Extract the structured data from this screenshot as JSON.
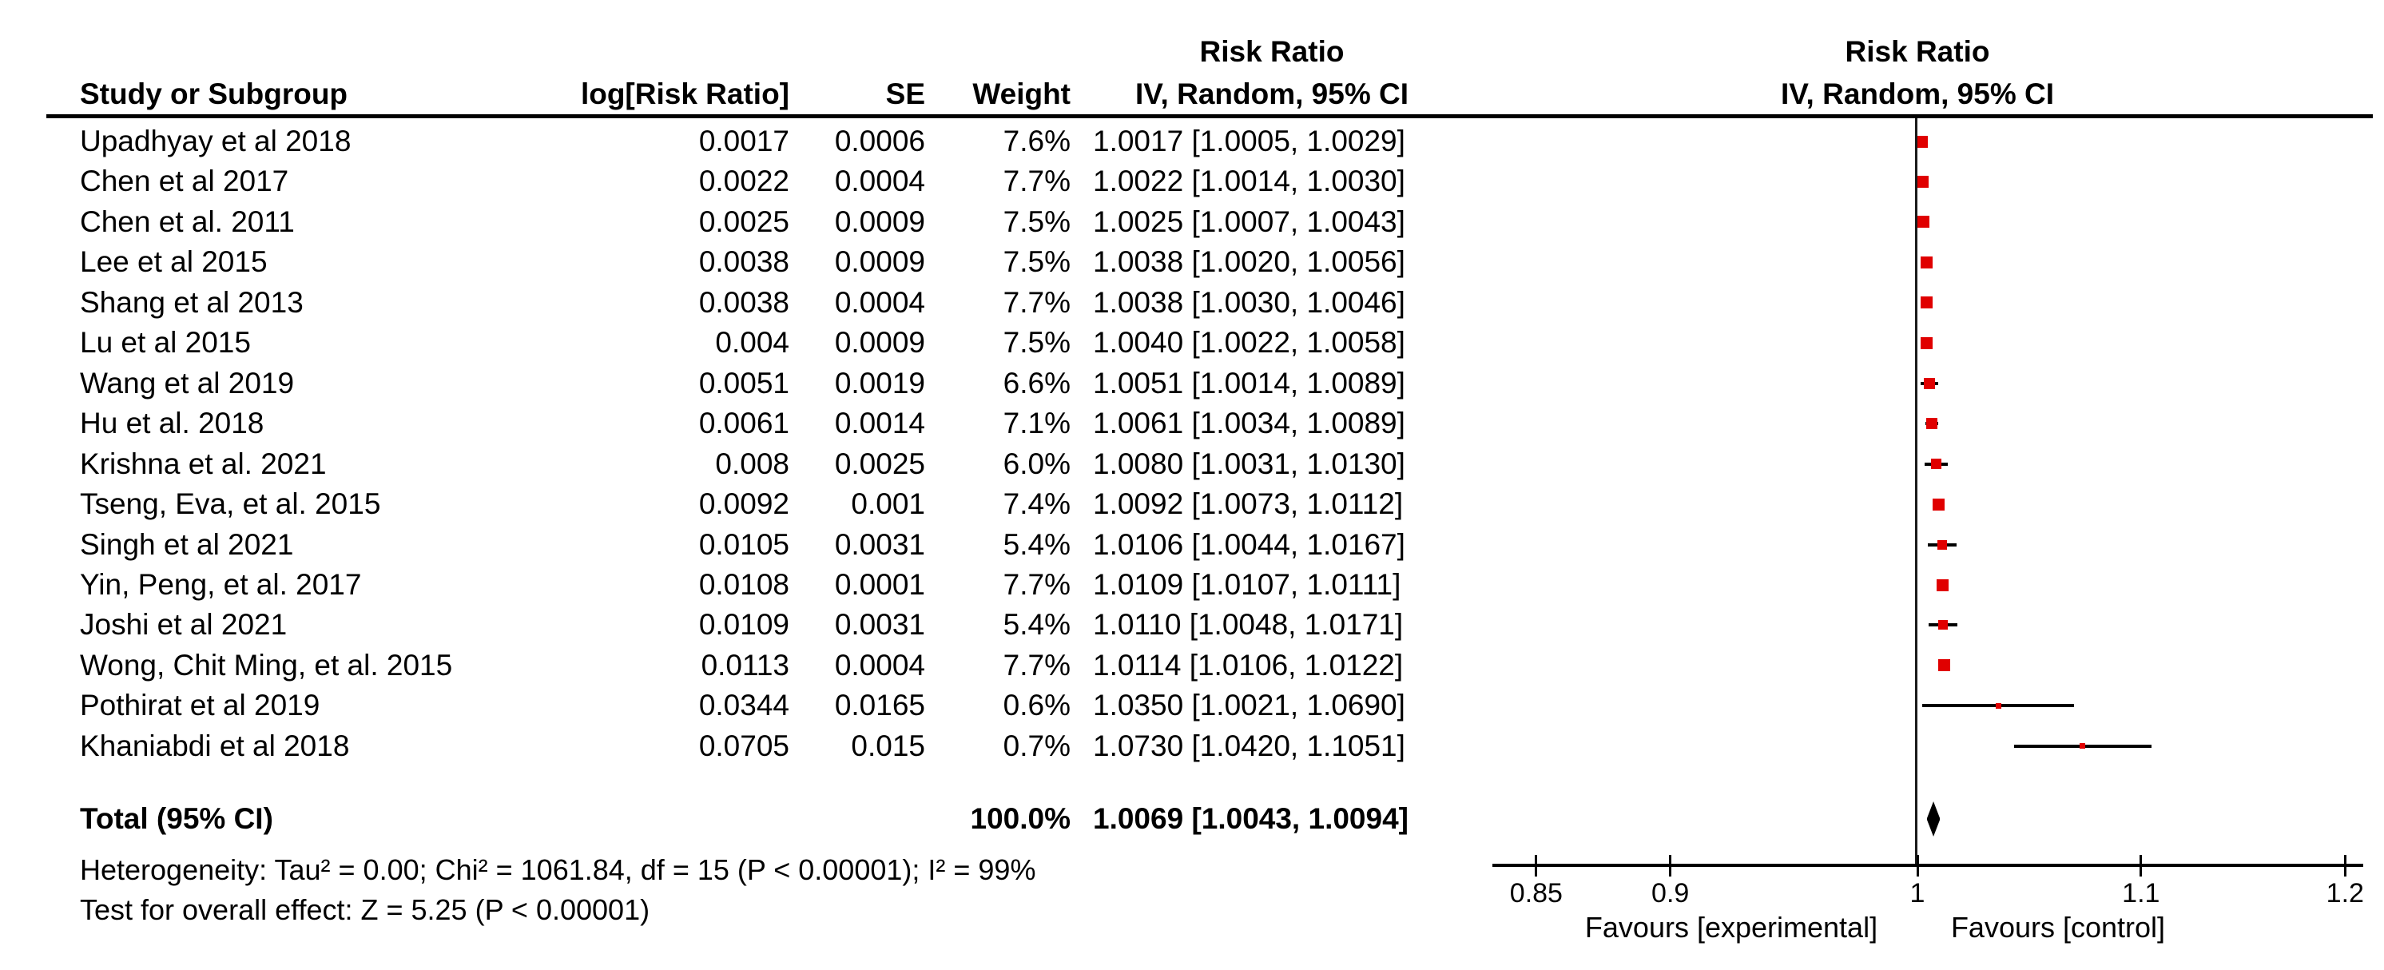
{
  "header": {
    "effect_title_left": "Risk Ratio",
    "effect_title_right": "Risk Ratio",
    "columns": {
      "study": "Study or Subgroup",
      "log_rr": "log[Risk Ratio]",
      "se": "SE",
      "weight": "Weight",
      "ci_left": "IV, Random, 95% CI",
      "ci_right": "IV, Random, 95% CI"
    }
  },
  "footer": {
    "heterogeneity": "Heterogeneity: Tau² = 0.00; Chi² = 1061.84, df = 15 (P < 0.00001); I² = 99%",
    "overall_effect": "Test for overall effect: Z = 5.25 (P < 0.00001)"
  },
  "colors": {
    "marker_red": "#e00000",
    "line_black": "#000000"
  },
  "chart_data": {
    "type": "forest",
    "effect_measure": "Risk Ratio",
    "model": "IV, Random, 95% CI",
    "x_scale": "log",
    "x_ticks": [
      0.85,
      0.9,
      1,
      1.1,
      1.2
    ],
    "x_tick_labels": [
      "0.85",
      "0.9",
      "1",
      "1.1",
      "1.2"
    ],
    "favours_left": "Favours [experimental]",
    "favours_right": "Favours [control]",
    "studies": [
      {
        "name": "Upadhyay et al 2018",
        "log_rr": "0.0017",
        "se": "0.0006",
        "weight": "7.6%",
        "ci_text": "1.0017 [1.0005, 1.0029]",
        "rr": 1.0017,
        "lo": 1.0005,
        "hi": 1.0029,
        "w": 7.6
      },
      {
        "name": "Chen et al 2017",
        "log_rr": "0.0022",
        "se": "0.0004",
        "weight": "7.7%",
        "ci_text": "1.0022 [1.0014, 1.0030]",
        "rr": 1.0022,
        "lo": 1.0014,
        "hi": 1.003,
        "w": 7.7
      },
      {
        "name": "Chen et al. 2011",
        "log_rr": "0.0025",
        "se": "0.0009",
        "weight": "7.5%",
        "ci_text": "1.0025 [1.0007, 1.0043]",
        "rr": 1.0025,
        "lo": 1.0007,
        "hi": 1.0043,
        "w": 7.5
      },
      {
        "name": "Lee et al 2015",
        "log_rr": "0.0038",
        "se": "0.0009",
        "weight": "7.5%",
        "ci_text": "1.0038 [1.0020, 1.0056]",
        "rr": 1.0038,
        "lo": 1.002,
        "hi": 1.0056,
        "w": 7.5
      },
      {
        "name": "Shang et al 2013",
        "log_rr": "0.0038",
        "se": "0.0004",
        "weight": "7.7%",
        "ci_text": "1.0038 [1.0030, 1.0046]",
        "rr": 1.0038,
        "lo": 1.003,
        "hi": 1.0046,
        "w": 7.7
      },
      {
        "name": "Lu et al 2015",
        "log_rr": "0.004",
        "se": "0.0009",
        "weight": "7.5%",
        "ci_text": "1.0040 [1.0022, 1.0058]",
        "rr": 1.004,
        "lo": 1.0022,
        "hi": 1.0058,
        "w": 7.5
      },
      {
        "name": "Wang et al 2019",
        "log_rr": "0.0051",
        "se": "0.0019",
        "weight": "6.6%",
        "ci_text": "1.0051 [1.0014, 1.0089]",
        "rr": 1.0051,
        "lo": 1.0014,
        "hi": 1.0089,
        "w": 6.6
      },
      {
        "name": "Hu et al. 2018",
        "log_rr": "0.0061",
        "se": "0.0014",
        "weight": "7.1%",
        "ci_text": "1.0061 [1.0034, 1.0089]",
        "rr": 1.0061,
        "lo": 1.0034,
        "hi": 1.0089,
        "w": 7.1
      },
      {
        "name": "Krishna et al. 2021",
        "log_rr": "0.008",
        "se": "0.0025",
        "weight": "6.0%",
        "ci_text": "1.0080 [1.0031, 1.0130]",
        "rr": 1.008,
        "lo": 1.0031,
        "hi": 1.013,
        "w": 6.0
      },
      {
        "name": "Tseng, Eva, et al. 2015",
        "log_rr": "0.0092",
        "se": "0.001",
        "weight": "7.4%",
        "ci_text": "1.0092 [1.0073, 1.0112]",
        "rr": 1.0092,
        "lo": 1.0073,
        "hi": 1.0112,
        "w": 7.4
      },
      {
        "name": "Singh et al 2021",
        "log_rr": "0.0105",
        "se": "0.0031",
        "weight": "5.4%",
        "ci_text": "1.0106 [1.0044, 1.0167]",
        "rr": 1.0106,
        "lo": 1.0044,
        "hi": 1.0167,
        "w": 5.4
      },
      {
        "name": "Yin, Peng, et al. 2017",
        "log_rr": "0.0108",
        "se": "0.0001",
        "weight": "7.7%",
        "ci_text": "1.0109 [1.0107, 1.0111]",
        "rr": 1.0109,
        "lo": 1.0107,
        "hi": 1.0111,
        "w": 7.7
      },
      {
        "name": "Joshi et al 2021",
        "log_rr": "0.0109",
        "se": "0.0031",
        "weight": "5.4%",
        "ci_text": "1.0110 [1.0048, 1.0171]",
        "rr": 1.011,
        "lo": 1.0048,
        "hi": 1.0171,
        "w": 5.4
      },
      {
        "name": "Wong, Chit Ming, et al. 2015",
        "log_rr": "0.0113",
        "se": "0.0004",
        "weight": "7.7%",
        "ci_text": "1.0114 [1.0106, 1.0122]",
        "rr": 1.0114,
        "lo": 1.0106,
        "hi": 1.0122,
        "w": 7.7
      },
      {
        "name": "Pothirat et al 2019",
        "log_rr": "0.0344",
        "se": "0.0165",
        "weight": "0.6%",
        "ci_text": "1.0350 [1.0021, 1.0690]",
        "rr": 1.035,
        "lo": 1.0021,
        "hi": 1.069,
        "w": 0.6
      },
      {
        "name": "Khaniabdi et al 2018",
        "log_rr": "0.0705",
        "se": "0.015",
        "weight": "0.7%",
        "ci_text": "1.0730 [1.0420, 1.1051]",
        "rr": 1.073,
        "lo": 1.042,
        "hi": 1.1051,
        "w": 0.7
      }
    ],
    "total": {
      "label": "Total (95% CI)",
      "weight": "100.0%",
      "ci_text": "1.0069 [1.0043, 1.0094]",
      "rr": 1.0069,
      "lo": 1.0043,
      "hi": 1.0094
    }
  }
}
